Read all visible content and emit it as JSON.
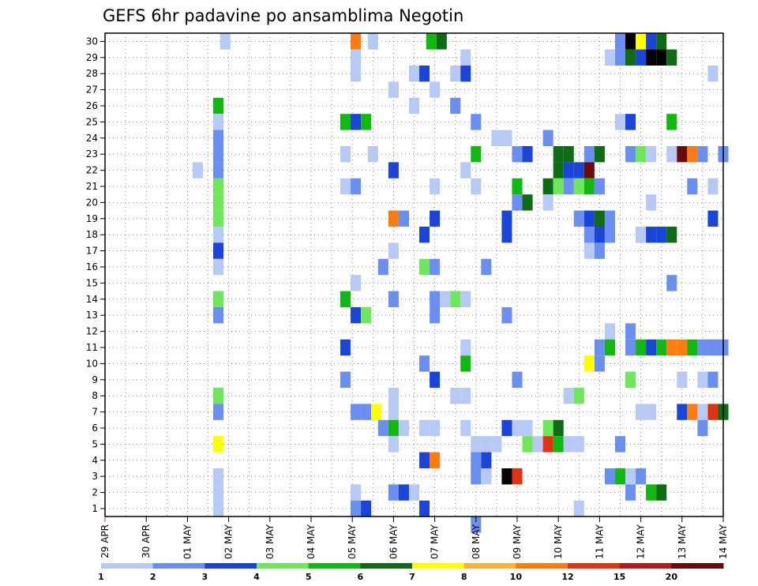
{
  "chart_data": {
    "type": "heatmap",
    "title": "GEFS 6hr padavine po ansamblima Negotin",
    "xlabel": "",
    "ylabel": "",
    "x_tick_labels": [
      "29 APR",
      "30 APR",
      "01 MAY",
      "02 MAY",
      "03 MAY",
      "04 MAY",
      "05 MAY",
      "06 MAY",
      "07 MAY",
      "08 MAY",
      "09 MAY",
      "10 MAY",
      "11 MAY",
      "12 MAY",
      "13 MAY",
      "14 MAY"
    ],
    "x_range_hours": [
      0,
      360
    ],
    "time_step_hours": 6,
    "y_tick_labels": [
      "1",
      "2",
      "3",
      "4",
      "5",
      "6",
      "7",
      "8",
      "9",
      "10",
      "11",
      "12",
      "13",
      "14",
      "15",
      "16",
      "17",
      "18",
      "19",
      "20",
      "21",
      "22",
      "23",
      "24",
      "25",
      "26",
      "27",
      "28",
      "29",
      "30"
    ],
    "y_range": [
      1,
      30
    ],
    "grid": "dotted",
    "colorbar": {
      "labels": [
        "1",
        "2",
        "3",
        "4",
        "5",
        "6",
        "7",
        "8",
        "10",
        "12",
        "15",
        "20"
      ],
      "colors": [
        "#b7c9f5",
        "#6b8ff0",
        "#1b45d8",
        "#6ee85a",
        "#12b812",
        "#0f6b14",
        "#ffff00",
        "#ffb233",
        "#ff7a0f",
        "#e03312",
        "#b81a1a",
        "#6b0a0a"
      ]
    },
    "cells": [
      [
        30,
        70,
        1
      ],
      [
        30,
        146,
        9
      ],
      [
        30,
        156,
        1
      ],
      [
        30,
        190,
        5
      ],
      [
        30,
        196,
        6
      ],
      [
        30,
        300,
        2
      ],
      [
        30,
        306,
        15
      ],
      [
        30,
        312,
        7
      ],
      [
        30,
        318,
        3
      ],
      [
        30,
        324,
        6
      ],
      [
        29,
        146,
        1
      ],
      [
        29,
        210,
        1
      ],
      [
        29,
        294,
        1
      ],
      [
        29,
        300,
        2
      ],
      [
        29,
        306,
        6
      ],
      [
        29,
        312,
        3
      ],
      [
        29,
        318,
        15
      ],
      [
        29,
        324,
        20
      ],
      [
        29,
        330,
        6
      ],
      [
        28,
        146,
        1
      ],
      [
        28,
        180,
        1
      ],
      [
        28,
        186,
        3
      ],
      [
        28,
        204,
        1
      ],
      [
        28,
        210,
        3
      ],
      [
        28,
        354,
        1
      ],
      [
        27,
        168,
        1
      ],
      [
        27,
        192,
        1
      ],
      [
        26,
        66,
        5
      ],
      [
        26,
        180,
        1
      ],
      [
        26,
        204,
        2
      ],
      [
        25,
        66,
        1
      ],
      [
        25,
        140,
        5
      ],
      [
        25,
        146,
        3
      ],
      [
        25,
        152,
        5
      ],
      [
        25,
        216,
        2
      ],
      [
        25,
        300,
        1
      ],
      [
        25,
        306,
        3
      ],
      [
        25,
        330,
        5
      ],
      [
        24,
        66,
        2
      ],
      [
        24,
        228,
        1
      ],
      [
        24,
        234,
        1
      ],
      [
        24,
        258,
        2
      ],
      [
        23,
        66,
        2
      ],
      [
        23,
        140,
        1
      ],
      [
        23,
        156,
        1
      ],
      [
        23,
        216,
        5
      ],
      [
        23,
        240,
        2
      ],
      [
        23,
        246,
        3
      ],
      [
        23,
        264,
        6
      ],
      [
        23,
        270,
        6
      ],
      [
        23,
        282,
        2
      ],
      [
        23,
        288,
        6
      ],
      [
        23,
        306,
        2
      ],
      [
        23,
        312,
        4
      ],
      [
        23,
        318,
        1
      ],
      [
        23,
        330,
        1
      ],
      [
        23,
        336,
        12
      ],
      [
        23,
        342,
        9
      ],
      [
        23,
        348,
        2
      ],
      [
        23,
        360,
        2
      ],
      [
        22,
        54,
        1
      ],
      [
        22,
        66,
        2
      ],
      [
        22,
        168,
        3
      ],
      [
        22,
        210,
        1
      ],
      [
        22,
        264,
        6
      ],
      [
        22,
        270,
        3
      ],
      [
        22,
        276,
        3
      ],
      [
        22,
        282,
        12
      ],
      [
        21,
        66,
        4
      ],
      [
        21,
        140,
        1
      ],
      [
        21,
        146,
        2
      ],
      [
        21,
        192,
        1
      ],
      [
        21,
        216,
        1
      ],
      [
        21,
        240,
        5
      ],
      [
        21,
        258,
        6
      ],
      [
        21,
        264,
        4
      ],
      [
        21,
        270,
        2
      ],
      [
        21,
        276,
        4
      ],
      [
        21,
        282,
        5
      ],
      [
        21,
        288,
        2
      ],
      [
        21,
        342,
        2
      ],
      [
        21,
        354,
        1
      ],
      [
        20,
        66,
        4
      ],
      [
        20,
        240,
        2
      ],
      [
        20,
        246,
        6
      ],
      [
        20,
        258,
        1
      ],
      [
        20,
        318,
        1
      ],
      [
        19,
        66,
        4
      ],
      [
        19,
        168,
        9
      ],
      [
        19,
        174,
        2
      ],
      [
        19,
        192,
        3
      ],
      [
        19,
        234,
        3
      ],
      [
        19,
        276,
        2
      ],
      [
        19,
        282,
        3
      ],
      [
        19,
        288,
        6
      ],
      [
        19,
        294,
        2
      ],
      [
        19,
        354,
        3
      ],
      [
        18,
        66,
        1
      ],
      [
        18,
        186,
        3
      ],
      [
        18,
        234,
        3
      ],
      [
        18,
        282,
        2
      ],
      [
        18,
        288,
        3
      ],
      [
        18,
        294,
        2
      ],
      [
        18,
        312,
        1
      ],
      [
        18,
        318,
        3
      ],
      [
        18,
        324,
        3
      ],
      [
        18,
        330,
        6
      ],
      [
        17,
        66,
        3
      ],
      [
        17,
        168,
        1
      ],
      [
        17,
        282,
        1
      ],
      [
        17,
        288,
        2
      ],
      [
        16,
        66,
        1
      ],
      [
        16,
        162,
        2
      ],
      [
        16,
        186,
        4
      ],
      [
        16,
        192,
        2
      ],
      [
        16,
        222,
        2
      ],
      [
        15,
        146,
        1
      ],
      [
        15,
        330,
        2
      ],
      [
        14,
        66,
        4
      ],
      [
        14,
        140,
        5
      ],
      [
        14,
        168,
        2
      ],
      [
        14,
        192,
        2
      ],
      [
        14,
        198,
        1
      ],
      [
        14,
        204,
        4
      ],
      [
        14,
        210,
        1
      ],
      [
        13,
        66,
        2
      ],
      [
        13,
        146,
        3
      ],
      [
        13,
        152,
        4
      ],
      [
        13,
        192,
        2
      ],
      [
        13,
        234,
        2
      ],
      [
        12,
        294,
        1
      ],
      [
        12,
        306,
        2
      ],
      [
        11,
        140,
        3
      ],
      [
        11,
        210,
        1
      ],
      [
        11,
        288,
        2
      ],
      [
        11,
        294,
        5
      ],
      [
        11,
        306,
        2
      ],
      [
        11,
        312,
        5
      ],
      [
        11,
        318,
        3
      ],
      [
        11,
        324,
        5
      ],
      [
        11,
        330,
        9
      ],
      [
        11,
        336,
        9
      ],
      [
        11,
        342,
        5
      ],
      [
        11,
        348,
        2
      ],
      [
        11,
        354,
        2
      ],
      [
        11,
        360,
        2
      ],
      [
        10,
        186,
        2
      ],
      [
        10,
        210,
        5
      ],
      [
        10,
        282,
        7
      ],
      [
        10,
        288,
        2
      ],
      [
        9,
        140,
        2
      ],
      [
        9,
        192,
        3
      ],
      [
        9,
        240,
        2
      ],
      [
        9,
        306,
        4
      ],
      [
        9,
        336,
        1
      ],
      [
        9,
        348,
        1
      ],
      [
        9,
        354,
        2
      ],
      [
        8,
        66,
        4
      ],
      [
        8,
        168,
        1
      ],
      [
        8,
        204,
        1
      ],
      [
        8,
        210,
        1
      ],
      [
        8,
        270,
        1
      ],
      [
        8,
        276,
        4
      ],
      [
        7,
        66,
        2
      ],
      [
        7,
        146,
        2
      ],
      [
        7,
        152,
        2
      ],
      [
        7,
        158,
        7
      ],
      [
        7,
        168,
        1
      ],
      [
        7,
        312,
        1
      ],
      [
        7,
        318,
        1
      ],
      [
        7,
        336,
        3
      ],
      [
        7,
        342,
        9
      ],
      [
        7,
        348,
        1
      ],
      [
        7,
        354,
        10
      ],
      [
        7,
        360,
        6
      ],
      [
        6,
        162,
        2
      ],
      [
        6,
        168,
        5
      ],
      [
        6,
        174,
        1
      ],
      [
        6,
        186,
        1
      ],
      [
        6,
        192,
        1
      ],
      [
        6,
        210,
        1
      ],
      [
        6,
        234,
        3
      ],
      [
        6,
        240,
        1
      ],
      [
        6,
        246,
        1
      ],
      [
        6,
        258,
        4
      ],
      [
        6,
        264,
        6
      ],
      [
        6,
        348,
        2
      ],
      [
        5,
        66,
        7
      ],
      [
        5,
        168,
        1
      ],
      [
        5,
        216,
        1
      ],
      [
        5,
        222,
        1
      ],
      [
        5,
        228,
        1
      ],
      [
        5,
        246,
        4
      ],
      [
        5,
        252,
        1
      ],
      [
        5,
        258,
        10
      ],
      [
        5,
        264,
        5
      ],
      [
        5,
        270,
        1
      ],
      [
        5,
        276,
        1
      ],
      [
        5,
        300,
        2
      ],
      [
        4,
        186,
        3
      ],
      [
        4,
        192,
        9
      ],
      [
        4,
        216,
        2
      ],
      [
        4,
        222,
        3
      ],
      [
        3,
        66,
        1
      ],
      [
        3,
        216,
        2
      ],
      [
        3,
        222,
        1
      ],
      [
        3,
        234,
        15
      ],
      [
        3,
        240,
        10
      ],
      [
        3,
        294,
        2
      ],
      [
        3,
        300,
        5
      ],
      [
        3,
        306,
        1
      ],
      [
        3,
        312,
        2
      ],
      [
        2,
        66,
        1
      ],
      [
        2,
        146,
        1
      ],
      [
        2,
        168,
        2
      ],
      [
        2,
        174,
        3
      ],
      [
        2,
        180,
        1
      ],
      [
        2,
        306,
        2
      ],
      [
        2,
        318,
        5
      ],
      [
        2,
        324,
        6
      ],
      [
        1,
        66,
        1
      ],
      [
        1,
        146,
        2
      ],
      [
        1,
        152,
        3
      ],
      [
        1,
        186,
        3
      ],
      [
        1,
        276,
        1
      ],
      [
        0,
        216,
        2
      ]
    ]
  }
}
